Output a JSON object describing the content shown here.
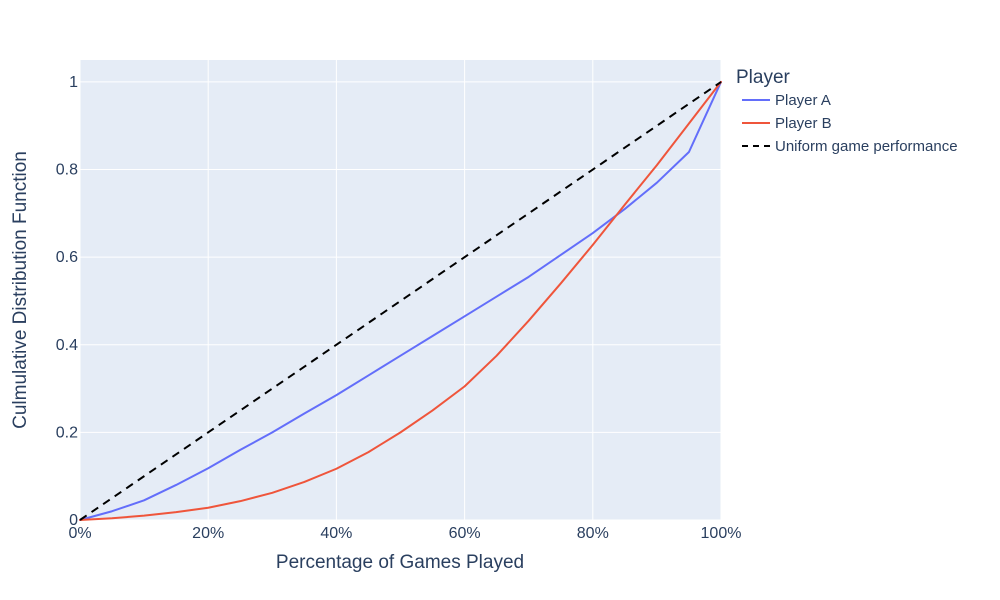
{
  "chart_data": {
    "type": "line",
    "title": "",
    "xlabel": "Percentage of Games Played",
    "ylabel": "Culmulative Distribution Function",
    "xlim": [
      0,
      1
    ],
    "ylim": [
      0,
      1.05
    ],
    "x_tick_values": [
      0,
      0.2,
      0.4,
      0.6,
      0.8,
      1.0
    ],
    "x_tick_labels": [
      "0%",
      "20%",
      "40%",
      "60%",
      "80%",
      "100%"
    ],
    "y_tick_values": [
      0,
      0.2,
      0.4,
      0.6,
      0.8,
      1.0
    ],
    "y_tick_labels": [
      "0",
      "0.2",
      "0.4",
      "0.6",
      "0.8",
      "1"
    ],
    "grid": true,
    "plot_background": "#e5ecf6",
    "grid_color": "#ffffff",
    "legend": {
      "title": "Player",
      "placement": "right"
    },
    "series": [
      {
        "name": "Player A",
        "color": "#636efa",
        "dash": "solid",
        "x": [
          0,
          0.05,
          0.1,
          0.15,
          0.2,
          0.25,
          0.3,
          0.35,
          0.4,
          0.45,
          0.5,
          0.55,
          0.6,
          0.65,
          0.7,
          0.75,
          0.8,
          0.85,
          0.9,
          0.95,
          1.0
        ],
        "y": [
          0,
          0.02,
          0.045,
          0.08,
          0.118,
          0.16,
          0.2,
          0.243,
          0.285,
          0.33,
          0.375,
          0.42,
          0.465,
          0.51,
          0.555,
          0.605,
          0.655,
          0.71,
          0.77,
          0.84,
          1.0
        ]
      },
      {
        "name": "Player B",
        "color": "#ef553b",
        "dash": "solid",
        "x": [
          0,
          0.05,
          0.1,
          0.15,
          0.2,
          0.25,
          0.3,
          0.35,
          0.4,
          0.45,
          0.5,
          0.55,
          0.6,
          0.65,
          0.7,
          0.75,
          0.8,
          0.85,
          0.9,
          0.95,
          1.0
        ],
        "y": [
          0,
          0.004,
          0.01,
          0.018,
          0.028,
          0.043,
          0.062,
          0.087,
          0.117,
          0.155,
          0.2,
          0.25,
          0.305,
          0.375,
          0.455,
          0.54,
          0.628,
          0.72,
          0.81,
          0.905,
          1.0
        ]
      },
      {
        "name": "Uniform game performance",
        "color": "#000000",
        "dash": "dash",
        "x": [
          0,
          1.0
        ],
        "y": [
          0,
          1.0
        ]
      }
    ]
  }
}
